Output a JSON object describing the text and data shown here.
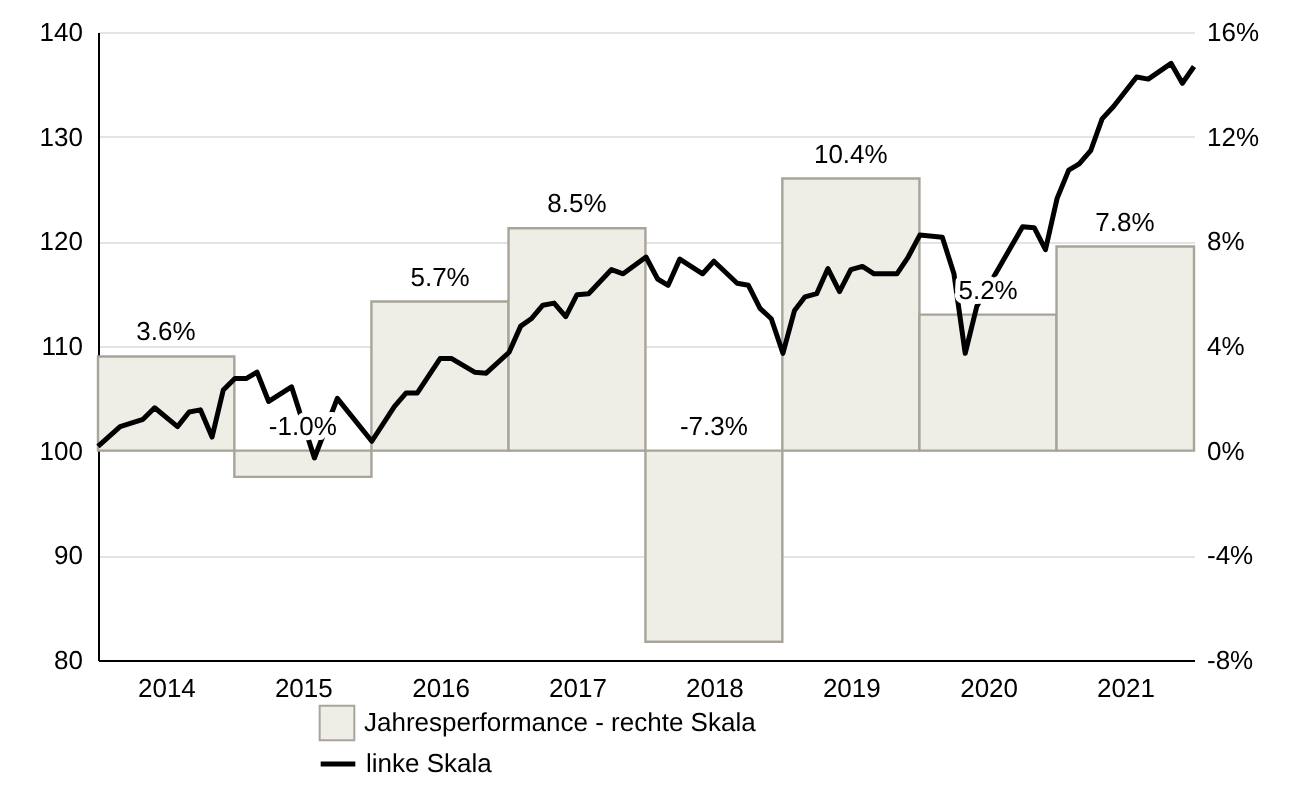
{
  "chart_data": {
    "type": "bar",
    "x": [
      "2014-07",
      "2015-07",
      "2016-07",
      "2017-07",
      "2018-07",
      "2019-07",
      "2020-07",
      "2021-07"
    ],
    "xlim": [
      "2014-01",
      "2022-01"
    ],
    "xticks": [
      {
        "value": "2014-07",
        "label": "2014"
      },
      {
        "value": "2015-07",
        "label": "2015"
      },
      {
        "value": "2016-07",
        "label": "2016"
      },
      {
        "value": "2017-07",
        "label": "2017"
      },
      {
        "value": "2018-07",
        "label": "2018"
      },
      {
        "value": "2019-07",
        "label": "2019"
      },
      {
        "value": "2020-07",
        "label": "2020"
      },
      {
        "value": "2021-07",
        "label": "2021"
      }
    ],
    "ylim": [
      80,
      140
    ],
    "yticks": [
      80,
      90,
      100,
      110,
      120,
      130,
      140
    ],
    "y2lim": [
      -8,
      16
    ],
    "y2ticks": [
      {
        "value": -8,
        "label": "-8%"
      },
      {
        "value": -4,
        "label": "-4%"
      },
      {
        "value": 0,
        "label": "0%"
      },
      {
        "value": 4,
        "label": "4%"
      },
      {
        "value": 8,
        "label": "8%"
      },
      {
        "value": 12,
        "label": "12%"
      },
      {
        "value": 16,
        "label": "16%"
      }
    ],
    "grid": "y",
    "legend": "bottom",
    "series": [
      {
        "name": "Jahresperformance - rechte Skala",
        "axis": "y2",
        "color": "#efeee6",
        "values": [
          3.6,
          -1.0,
          5.7,
          8.5,
          -7.3,
          10.4,
          5.2,
          7.8
        ],
        "value_labels": [
          "3.6%",
          "-1.0%",
          "5.7%",
          "8.5%",
          "-7.3%",
          "10.4%",
          "5.2%",
          "7.8%"
        ]
      },
      {
        "name": "linke Skala",
        "type": "line",
        "color": "#000000",
        "x": [
          "2014-01",
          "2014-03",
          "2014-05",
          "2014-06",
          "2014-08",
          "2014-09",
          "2014-10",
          "2014-11",
          "2014-12",
          "2015-01",
          "2015-02",
          "2015-03",
          "2015-04",
          "2015-06",
          "2015-08",
          "2015-10",
          "2016-01",
          "2016-03",
          "2016-04",
          "2016-05",
          "2016-07",
          "2016-08",
          "2016-10",
          "2016-11",
          "2017-01",
          "2017-02",
          "2017-03",
          "2017-04",
          "2017-05",
          "2017-06",
          "2017-07",
          "2017-08",
          "2017-10",
          "2017-11",
          "2018-01",
          "2018-02",
          "2018-03",
          "2018-04",
          "2018-06",
          "2018-07",
          "2018-09",
          "2018-10",
          "2018-11",
          "2018-12",
          "2019-01",
          "2019-02",
          "2019-03",
          "2019-04",
          "2019-05",
          "2019-06",
          "2019-07",
          "2019-08",
          "2019-09",
          "2019-11",
          "2019-12",
          "2020-01",
          "2020-03",
          "2020-04",
          "2020-05",
          "2020-06",
          "2020-08",
          "2020-10",
          "2020-11",
          "2020-12",
          "2021-01",
          "2021-02",
          "2021-03",
          "2021-04",
          "2021-05",
          "2021-06",
          "2021-08",
          "2021-09",
          "2021-11",
          "2021-12",
          "2022-01"
        ],
        "values": [
          100.4,
          102.3,
          103.0,
          104.1,
          102.3,
          103.7,
          103.9,
          101.3,
          105.8,
          106.9,
          106.9,
          107.5,
          104.7,
          106.1,
          99.3,
          105.0,
          100.9,
          104.2,
          105.5,
          105.5,
          108.8,
          108.8,
          107.5,
          107.4,
          109.4,
          111.9,
          112.6,
          113.9,
          114.1,
          112.8,
          114.9,
          115.0,
          117.3,
          116.9,
          118.5,
          116.4,
          115.8,
          118.3,
          116.9,
          118.1,
          116.0,
          115.8,
          113.6,
          112.6,
          109.3,
          113.4,
          114.7,
          115.0,
          117.4,
          115.2,
          117.3,
          117.6,
          116.9,
          116.9,
          118.5,
          120.6,
          120.4,
          116.9,
          109.3,
          113.8,
          117.6,
          121.4,
          121.3,
          119.2,
          124.1,
          126.8,
          127.4,
          128.7,
          131.7,
          132.9,
          135.7,
          135.5,
          137.0,
          135.1,
          136.7
        ]
      }
    ]
  }
}
